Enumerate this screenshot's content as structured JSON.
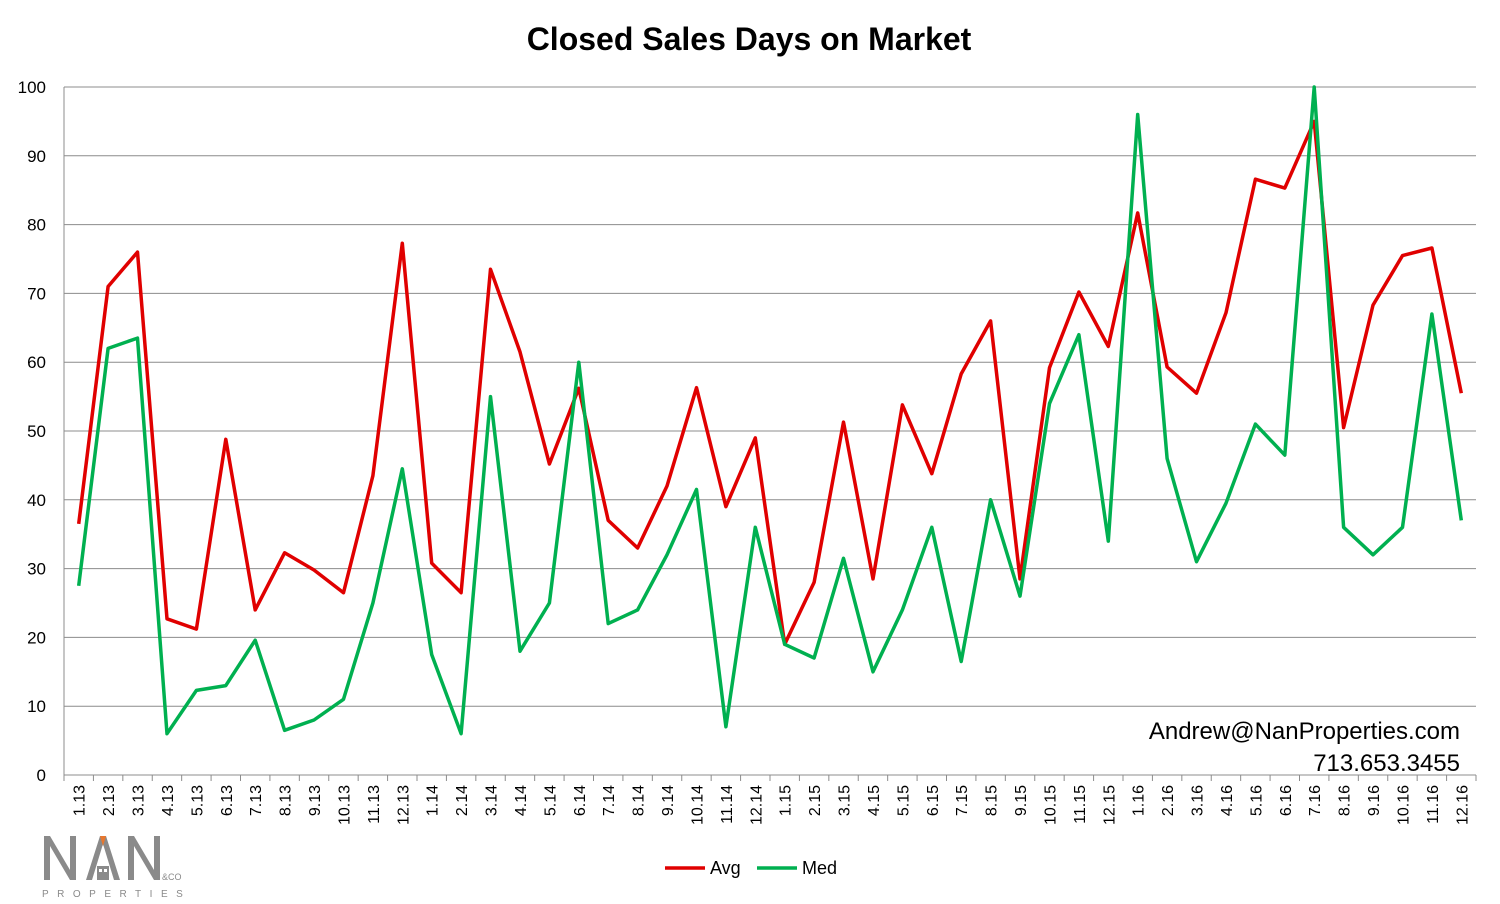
{
  "chart_data": {
    "type": "line",
    "title": "Closed Sales Days on Market",
    "xlabel": "",
    "ylabel": "",
    "ylim": [
      0,
      100
    ],
    "yticks": [
      0,
      10,
      20,
      30,
      40,
      50,
      60,
      70,
      80,
      90,
      100
    ],
    "grid": true,
    "legend_position": "bottom",
    "categories": [
      "1.13",
      "2.13",
      "3.13",
      "4.13",
      "5.13",
      "6.13",
      "7.13",
      "8.13",
      "9.13",
      "10.13",
      "11.13",
      "12.13",
      "1.14",
      "2.14",
      "3.14",
      "4.14",
      "5.14",
      "6.14",
      "7.14",
      "8.14",
      "9.14",
      "10.14",
      "11.14",
      "12.14",
      "1.15",
      "2.15",
      "3.15",
      "4.15",
      "5.15",
      "6.15",
      "7.15",
      "8.15",
      "9.15",
      "10.15",
      "11.15",
      "12.15",
      "1.16",
      "2.16",
      "3.16",
      "4.16",
      "5.16",
      "6.16",
      "7.16",
      "8.16",
      "9.16",
      "10.16",
      "11.16",
      "12.16"
    ],
    "series": [
      {
        "name": "Avg",
        "color": "#e00000",
        "values": [
          36.5,
          71,
          76,
          22.7,
          21.2,
          48.8,
          24,
          32.3,
          29.8,
          26.5,
          43.5,
          77.3,
          30.8,
          26.5,
          73.5,
          61.5,
          45.2,
          56.2,
          37,
          33,
          42,
          56.3,
          39,
          49,
          19,
          28,
          51.3,
          28.5,
          53.8,
          43.8,
          58.3,
          66,
          28.5,
          59.2,
          70.2,
          62.3,
          81.7,
          59.3,
          55.5,
          67.2,
          86.6,
          85.3,
          95,
          50.5,
          68.3,
          75.5,
          76.6,
          55.5
        ]
      },
      {
        "name": "Med",
        "color": "#00b050",
        "values": [
          27.5,
          62,
          63.5,
          6,
          12.3,
          13,
          19.6,
          6.5,
          8,
          11,
          25,
          44.5,
          17.5,
          6,
          55,
          18,
          25,
          60,
          22,
          24,
          32,
          41.5,
          7,
          36,
          19,
          17,
          31.5,
          15,
          24,
          36,
          16.5,
          40,
          26,
          54,
          64,
          34,
          96,
          46,
          31,
          39.5,
          51,
          46.5,
          100,
          36,
          32,
          36,
          67,
          37
        ]
      }
    ]
  },
  "contact": {
    "email": "Andrew@NanProperties.com",
    "phone": "713.653.3455"
  },
  "logo": {
    "letters": "NAN",
    "suffix": "&CO",
    "tagline": "PROPERTIES",
    "colors": {
      "gray": "#8a8a8a",
      "orange": "#e8772e"
    }
  }
}
